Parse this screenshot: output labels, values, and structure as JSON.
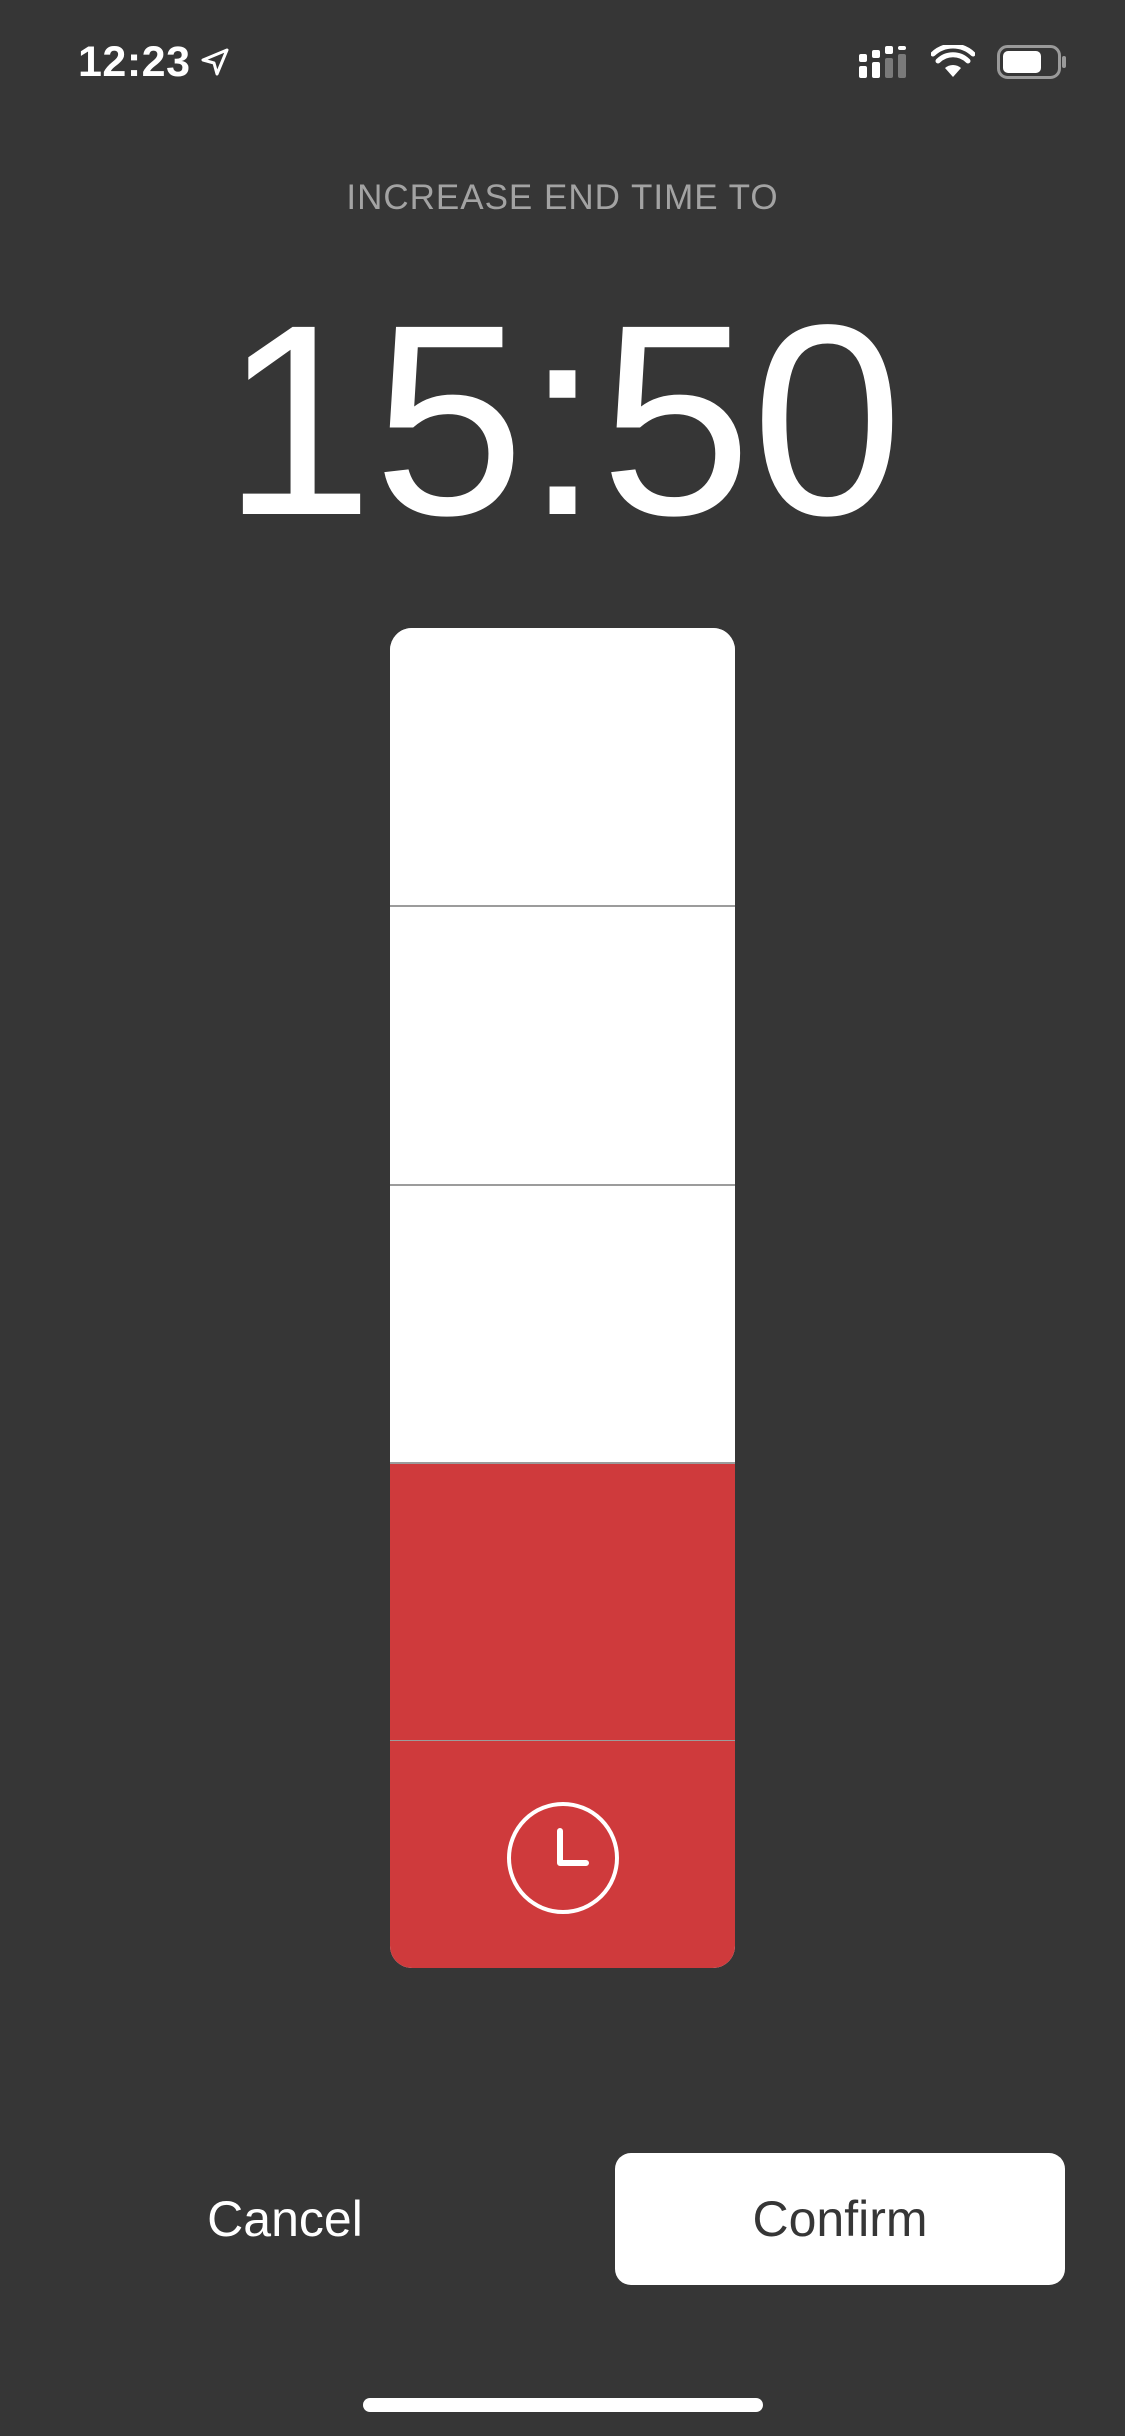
{
  "status_bar": {
    "time": "12:23",
    "icons": [
      "location-arrow-icon",
      "cellular-signal-icon",
      "wifi-icon",
      "battery-icon"
    ]
  },
  "screen": {
    "heading": "INCREASE END TIME TO",
    "end_time": "15:50"
  },
  "slider": {
    "total_steps": 4,
    "selected_steps": 1,
    "fill_color": "#cf3a3c",
    "empty_color": "#ffffff",
    "icon": "clock-icon"
  },
  "actions": {
    "cancel_label": "Cancel",
    "confirm_label": "Confirm"
  },
  "colors": {
    "background": "#363636",
    "accent": "#cf3a3c",
    "heading_text": "#a3a3a3"
  }
}
